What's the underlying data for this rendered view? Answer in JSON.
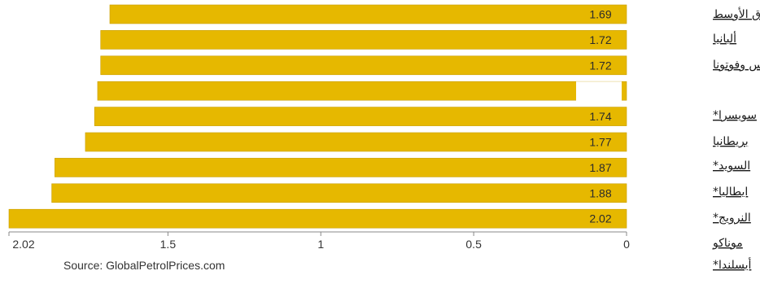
{
  "chart_data": {
    "type": "bar",
    "orientation": "horizontal",
    "direction": "right-to-left",
    "categories": [
      "الشرق الأوسط",
      "ألبانيا",
      "والس وفوتونا",
      "",
      "سويسرا*",
      "بريطانيا",
      "السويد*",
      "ايطاليا*",
      "النرويج*"
    ],
    "values": [
      1.69,
      1.72,
      1.72,
      1.73,
      1.74,
      1.77,
      1.87,
      1.88,
      2.02
    ],
    "value_labels": [
      "1.69",
      "1.72",
      "1.72",
      "",
      "1.74",
      "1.77",
      "1.87",
      "1.88",
      "2.02"
    ],
    "extra_labels": [
      "موناكو",
      "أيسلندا*"
    ],
    "x_ticks": [
      "2.02",
      "1.5",
      "1",
      "0.5",
      "0"
    ],
    "x_tick_values": [
      2.02,
      1.5,
      1,
      0.5,
      0
    ],
    "xlim": [
      0,
      2.02
    ],
    "grid": false,
    "bar_color": "#E6B800",
    "source": "Source: GlobalPetrolPrices.com"
  }
}
